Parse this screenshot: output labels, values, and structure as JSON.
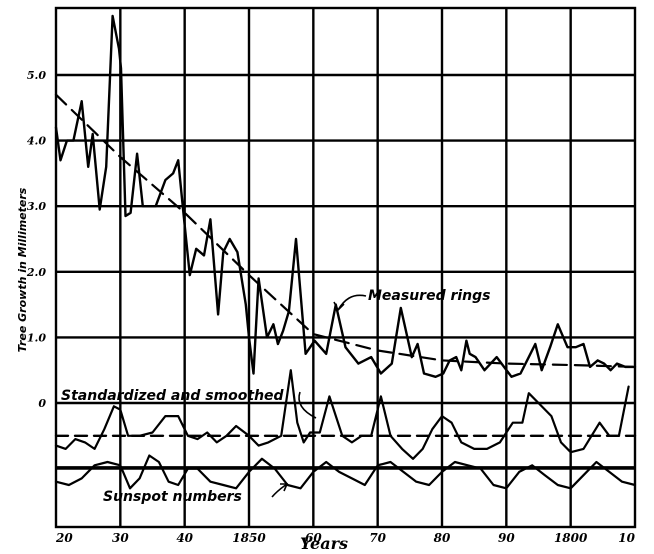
{
  "chart_data": {
    "type": "line",
    "title": "",
    "xlabel": "Years",
    "ylabel": "Tree Growth in Millimeters",
    "x_tick_labels": [
      "20",
      "30",
      "40",
      "1850",
      "60",
      "70",
      "80",
      "90",
      "1800",
      "10"
    ],
    "y_tick_labels": [
      {
        "label": "5.0",
        "value": 5
      },
      {
        "label": "4.0",
        "value": 4
      },
      {
        "label": "3.0",
        "value": 3
      },
      {
        "label": "2.0",
        "value": 2
      },
      {
        "label": "1.0",
        "value": 1
      },
      {
        "label": "0",
        "value": 0
      }
    ],
    "xlim": [
      0,
      9
    ],
    "ylim": [
      -2.2,
      6
    ],
    "grid": true,
    "annotations": [
      {
        "name": "measured-rings-annotation",
        "text": "Measured rings"
      },
      {
        "name": "standardized-annotation",
        "text": "Standardized and smoothed"
      },
      {
        "name": "sunspot-annotation",
        "text": "Sunspot numbers"
      }
    ],
    "series": [
      {
        "key": "measured-rings",
        "style": "solid",
        "x": [
          0,
          0.07,
          0.17,
          0.27,
          0.4,
          0.5,
          0.57,
          0.68,
          0.78,
          0.88,
          0.98,
          1.01,
          1.08,
          1.16,
          1.26,
          1.35,
          1.45,
          1.55,
          1.7,
          1.82,
          1.9,
          1.98,
          2.08,
          2.18,
          2.3,
          2.4,
          2.52,
          2.6,
          2.7,
          2.82,
          2.95,
          3.0,
          3.07,
          3.15,
          3.28,
          3.38,
          3.45,
          3.53,
          3.62,
          3.73,
          3.88,
          4.02,
          4.2,
          4.35,
          4.5,
          4.7,
          4.9,
          5.05,
          5.22,
          5.36,
          5.53,
          5.62,
          5.72,
          5.9,
          6.02,
          6.12,
          6.22,
          6.3,
          6.38,
          6.43,
          6.52,
          6.66,
          6.85,
          7.08,
          7.22,
          7.35,
          7.45,
          7.55,
          7.68,
          7.8,
          7.95,
          8.08,
          8.2,
          8.3,
          8.42,
          8.52,
          8.62,
          8.72,
          8.85,
          9.0
        ],
        "y": [
          4.2,
          3.7,
          4.0,
          4.0,
          4.6,
          3.6,
          4.1,
          2.95,
          3.6,
          5.9,
          5.4,
          5.1,
          2.85,
          2.9,
          3.8,
          3.0,
          3.0,
          3.0,
          3.4,
          3.5,
          3.7,
          2.9,
          1.95,
          2.35,
          2.25,
          2.8,
          1.35,
          2.3,
          2.5,
          2.3,
          1.5,
          1.0,
          0.45,
          1.9,
          1.0,
          1.2,
          0.9,
          1.1,
          1.4,
          2.5,
          0.75,
          0.95,
          0.75,
          1.5,
          0.85,
          0.6,
          0.7,
          0.45,
          0.6,
          1.45,
          0.7,
          0.9,
          0.45,
          0.4,
          0.45,
          0.65,
          0.7,
          0.5,
          0.95,
          0.75,
          0.7,
          0.5,
          0.7,
          0.4,
          0.45,
          0.7,
          0.9,
          0.5,
          0.85,
          1.2,
          0.85,
          0.85,
          0.9,
          0.55,
          0.65,
          0.6,
          0.5,
          0.6,
          0.55,
          0.55
        ],
        "y_note": "approximate values read from grid"
      },
      {
        "key": "trend-line",
        "style": "dashed",
        "x": [
          0,
          1,
          2,
          3,
          4,
          5,
          6,
          7,
          8,
          9
        ],
        "y": [
          4.7,
          3.75,
          2.9,
          1.95,
          1.05,
          0.8,
          0.65,
          0.6,
          0.58,
          0.55
        ]
      },
      {
        "key": "standardized-smoothed",
        "style": "solid",
        "x": [
          0,
          0.15,
          0.3,
          0.45,
          0.6,
          0.75,
          0.9,
          1.0,
          1.12,
          1.3,
          1.5,
          1.7,
          1.9,
          2.05,
          2.2,
          2.35,
          2.5,
          2.65,
          2.8,
          3.0,
          3.15,
          3.3,
          3.5,
          3.65,
          3.75,
          3.85,
          3.95,
          4.1,
          4.25,
          4.45,
          4.6,
          4.75,
          4.9,
          5.05,
          5.2,
          5.38,
          5.55,
          5.7,
          5.85,
          6.0,
          6.15,
          6.3,
          6.5,
          6.7,
          6.9,
          7.1,
          7.25,
          7.35,
          7.5,
          7.7,
          7.85,
          8.0,
          8.2,
          8.45,
          8.6,
          8.75,
          8.9
        ],
        "y": [
          -0.65,
          -0.7,
          -0.55,
          -0.6,
          -0.7,
          -0.4,
          -0.05,
          -0.1,
          -0.5,
          -0.5,
          -0.45,
          -0.2,
          -0.2,
          -0.5,
          -0.55,
          -0.45,
          -0.6,
          -0.5,
          -0.35,
          -0.5,
          -0.65,
          -0.6,
          -0.5,
          0.5,
          -0.3,
          -0.6,
          -0.45,
          -0.45,
          0.1,
          -0.5,
          -0.6,
          -0.5,
          -0.5,
          0.1,
          -0.5,
          -0.7,
          -0.85,
          -0.7,
          -0.4,
          -0.2,
          -0.3,
          -0.6,
          -0.7,
          -0.7,
          -0.6,
          -0.3,
          -0.3,
          0.15,
          0.0,
          -0.2,
          -0.6,
          -0.75,
          -0.7,
          -0.3,
          -0.5,
          -0.5,
          0.25
        ]
      },
      {
        "key": "zero-dashed",
        "style": "dashed",
        "x": [
          0,
          9
        ],
        "y": [
          -0.5,
          -0.5
        ]
      },
      {
        "key": "sunspot-numbers",
        "style": "solid",
        "x": [
          0,
          0.2,
          0.4,
          0.6,
          0.8,
          1.0,
          1.15,
          1.3,
          1.45,
          1.6,
          1.75,
          1.9,
          2.05,
          2.2,
          2.4,
          2.6,
          2.8,
          3.0,
          3.2,
          3.4,
          3.6,
          3.8,
          4.0,
          4.2,
          4.4,
          4.6,
          4.8,
          5.0,
          5.2,
          5.4,
          5.6,
          5.8,
          6.0,
          6.2,
          6.4,
          6.6,
          6.8,
          7.0,
          7.2,
          7.4,
          7.6,
          7.8,
          8.0,
          8.2,
          8.4,
          8.6,
          8.8,
          9.0
        ],
        "y": [
          -1.2,
          -1.25,
          -1.15,
          -0.95,
          -0.9,
          -0.95,
          -1.3,
          -1.15,
          -0.8,
          -0.9,
          -1.2,
          -1.25,
          -1.0,
          -1.0,
          -1.2,
          -1.25,
          -1.3,
          -1.05,
          -0.85,
          -1.0,
          -1.25,
          -1.3,
          -1.05,
          -0.9,
          -1.05,
          -1.15,
          -1.25,
          -0.95,
          -0.9,
          -1.05,
          -1.2,
          -1.25,
          -1.05,
          -0.9,
          -0.95,
          -1.0,
          -1.25,
          -1.3,
          -1.05,
          -0.95,
          -1.1,
          -1.25,
          -1.3,
          -1.1,
          -0.9,
          -1.05,
          -1.2,
          -1.25
        ]
      }
    ]
  }
}
